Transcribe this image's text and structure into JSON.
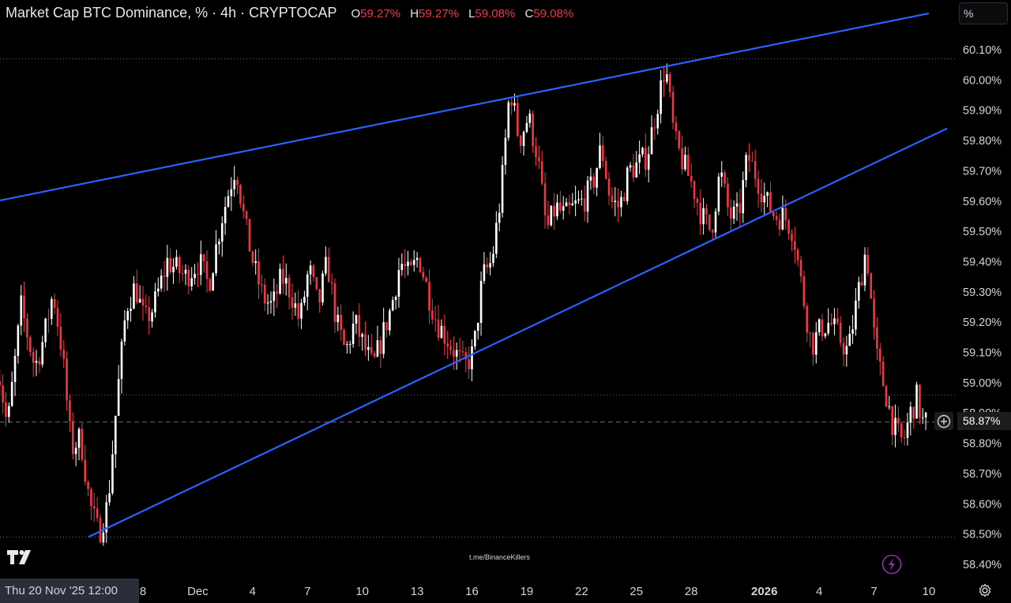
{
  "header": {
    "title": "Market Cap BTC Dominance, % · 4h · CRYPTOCAP",
    "open_label": "O",
    "open": "59.27%",
    "high_label": "H",
    "high": "59.27%",
    "low_label": "L",
    "low": "59.08%",
    "close_label": "C",
    "close": "59.08%"
  },
  "unit_button": "%",
  "crosshair_date": "Thu 20 Nov '25   12:00",
  "last_price_label": "58.87%",
  "watermark": "t.me/BinanceKillers",
  "icons": {
    "logo": "tradingview-logo-icon",
    "bolt": "lightning-icon",
    "settings": "gear-icon",
    "add": "plus-circle-icon"
  },
  "colors": {
    "background": "#000000",
    "up": "#ffffff",
    "down": "#f23645",
    "trendline": "#2962ff",
    "text": "#d1d4dc"
  },
  "chart_data": {
    "type": "candlestick",
    "title": "Market Cap BTC Dominance, % · 4h · CRYPTOCAP",
    "ylim": [
      58.35,
      60.21
    ],
    "y_ticks": [
      58.4,
      58.5,
      58.6,
      58.7,
      58.8,
      58.9,
      59.0,
      59.1,
      59.2,
      59.3,
      59.4,
      59.5,
      59.6,
      59.7,
      59.8,
      59.9,
      60.0,
      60.1
    ],
    "y_tick_labels": [
      "58.40%",
      "58.50%",
      "58.60%",
      "58.70%",
      "58.80%",
      "58.90%",
      "59.00%",
      "59.10%",
      "59.20%",
      "59.30%",
      "59.40%",
      "59.50%",
      "59.60%",
      "59.70%",
      "59.80%",
      "59.90%",
      "60.00%",
      "60.10%"
    ],
    "x_ticks": [
      {
        "label": "8",
        "date": "2025-11-28"
      },
      {
        "label": "Dec",
        "date": "2025-12-01"
      },
      {
        "label": "4",
        "date": "2025-12-04"
      },
      {
        "label": "7",
        "date": "2025-12-07"
      },
      {
        "label": "10",
        "date": "2025-12-10"
      },
      {
        "label": "13",
        "date": "2025-12-13"
      },
      {
        "label": "16",
        "date": "2025-12-16"
      },
      {
        "label": "19",
        "date": "2025-12-19"
      },
      {
        "label": "22",
        "date": "2025-12-22"
      },
      {
        "label": "25",
        "date": "2025-12-25"
      },
      {
        "label": "28",
        "date": "2025-12-28"
      },
      {
        "label": "2026",
        "date": "2026-01-01"
      },
      {
        "label": "4",
        "date": "2026-01-04"
      },
      {
        "label": "7",
        "date": "2026-01-07"
      },
      {
        "label": "10",
        "date": "2026-01-10"
      }
    ],
    "xlim": [
      "2025-11-20",
      "2026-01-11"
    ],
    "path": [
      [
        "2025-11-20",
        59.05
      ],
      [
        "2025-11-20",
        58.85
      ],
      [
        "2025-11-21",
        59.25
      ],
      [
        "2025-11-22",
        59.05
      ],
      [
        "2025-11-22",
        59.15
      ],
      [
        "2025-11-23",
        59.3
      ],
      [
        "2025-11-23",
        59.1
      ],
      [
        "2025-11-24",
        58.78
      ],
      [
        "2025-11-24",
        58.82
      ],
      [
        "2025-11-25",
        58.6
      ],
      [
        "2025-11-25",
        58.5
      ],
      [
        "2025-11-26",
        58.6
      ],
      [
        "2025-11-26",
        58.95
      ],
      [
        "2025-11-27",
        59.25
      ],
      [
        "2025-11-27",
        59.32
      ],
      [
        "2025-11-28",
        59.2
      ],
      [
        "2025-11-28",
        59.25
      ],
      [
        "2025-11-29",
        59.4
      ],
      [
        "2025-11-30",
        59.35
      ],
      [
        "2025-12-01",
        59.4
      ],
      [
        "2025-12-01",
        59.32
      ],
      [
        "2025-12-02",
        59.55
      ],
      [
        "2025-12-03",
        59.72
      ],
      [
        "2025-12-03",
        59.52
      ],
      [
        "2025-12-04",
        59.38
      ],
      [
        "2025-12-04",
        59.28
      ],
      [
        "2025-12-05",
        59.25
      ],
      [
        "2025-12-05",
        59.35
      ],
      [
        "2025-12-06",
        59.3
      ],
      [
        "2025-12-06",
        59.2
      ],
      [
        "2025-12-07",
        59.38
      ],
      [
        "2025-12-07",
        59.25
      ],
      [
        "2025-12-08",
        59.4
      ],
      [
        "2025-12-08",
        59.2
      ],
      [
        "2025-12-09",
        59.1
      ],
      [
        "2025-12-09",
        59.2
      ],
      [
        "2025-12-10",
        59.12
      ],
      [
        "2025-12-10",
        59.05
      ],
      [
        "2025-12-11",
        59.15
      ],
      [
        "2025-12-11",
        59.25
      ],
      [
        "2025-12-12",
        59.4
      ],
      [
        "2025-12-12",
        59.35
      ],
      [
        "2025-12-13",
        59.42
      ],
      [
        "2025-12-13",
        59.3
      ],
      [
        "2025-12-14",
        59.2
      ],
      [
        "2025-12-14",
        59.15
      ],
      [
        "2025-12-15",
        59.1
      ],
      [
        "2025-12-15",
        59.05
      ],
      [
        "2025-12-16",
        59.1
      ],
      [
        "2025-12-16",
        59.35
      ],
      [
        "2025-12-17",
        59.4
      ],
      [
        "2025-12-17",
        59.62
      ],
      [
        "2025-12-18",
        59.98
      ],
      [
        "2025-12-18",
        59.8
      ],
      [
        "2025-12-19",
        59.88
      ],
      [
        "2025-12-19",
        59.75
      ],
      [
        "2025-12-20",
        59.5
      ],
      [
        "2025-12-20",
        59.58
      ],
      [
        "2025-12-21",
        59.55
      ],
      [
        "2025-12-21",
        59.58
      ],
      [
        "2025-12-22",
        59.6
      ],
      [
        "2025-12-22",
        59.65
      ],
      [
        "2025-12-23",
        59.78
      ],
      [
        "2025-12-23",
        59.6
      ],
      [
        "2025-12-24",
        59.58
      ],
      [
        "2025-12-24",
        59.7
      ],
      [
        "2025-12-25",
        59.72
      ],
      [
        "2025-12-25",
        59.75
      ],
      [
        "2025-12-26",
        59.9
      ],
      [
        "2025-12-26",
        60.05
      ],
      [
        "2025-12-27",
        59.8
      ],
      [
        "2025-12-27",
        59.72
      ],
      [
        "2025-12-28",
        59.65
      ],
      [
        "2025-12-28",
        59.55
      ],
      [
        "2025-12-29",
        59.5
      ],
      [
        "2025-12-29",
        59.7
      ],
      [
        "2025-12-30",
        59.55
      ],
      [
        "2025-12-30",
        59.55
      ],
      [
        "2025-12-31",
        59.75
      ],
      [
        "2025-12-31",
        59.68
      ],
      [
        "2026-01-01",
        59.6
      ],
      [
        "2026-01-01",
        59.55
      ],
      [
        "2026-01-02",
        59.55
      ],
      [
        "2026-01-02",
        59.5
      ],
      [
        "2026-01-03",
        59.3
      ],
      [
        "2026-01-03",
        59.12
      ],
      [
        "2026-01-04",
        59.18
      ],
      [
        "2026-01-04",
        59.2
      ],
      [
        "2026-01-05",
        59.15
      ],
      [
        "2026-01-05",
        59.1
      ],
      [
        "2026-01-06",
        59.28
      ],
      [
        "2026-01-06",
        59.45
      ],
      [
        "2026-01-07",
        59.1
      ],
      [
        "2026-01-07",
        58.98
      ],
      [
        "2026-01-08",
        58.85
      ],
      [
        "2026-01-08",
        58.8
      ],
      [
        "2026-01-09",
        58.9
      ],
      [
        "2026-01-09",
        58.95
      ],
      [
        "2026-01-09",
        58.87
      ]
    ],
    "price_lines": [
      {
        "value": 60.07,
        "style": "dotted"
      },
      {
        "value": 58.96,
        "style": "dotted"
      },
      {
        "value": 58.87,
        "style": "dashed"
      },
      {
        "value": 58.49,
        "style": "dotted"
      }
    ],
    "trendlines": [
      {
        "from": [
          "2025-11-20",
          59.6
        ],
        "to": [
          "2026-01-10",
          60.22
        ]
      },
      {
        "from": [
          "2025-11-25",
          58.49
        ],
        "to": [
          "2026-01-11",
          59.84
        ]
      }
    ],
    "grid": false
  }
}
